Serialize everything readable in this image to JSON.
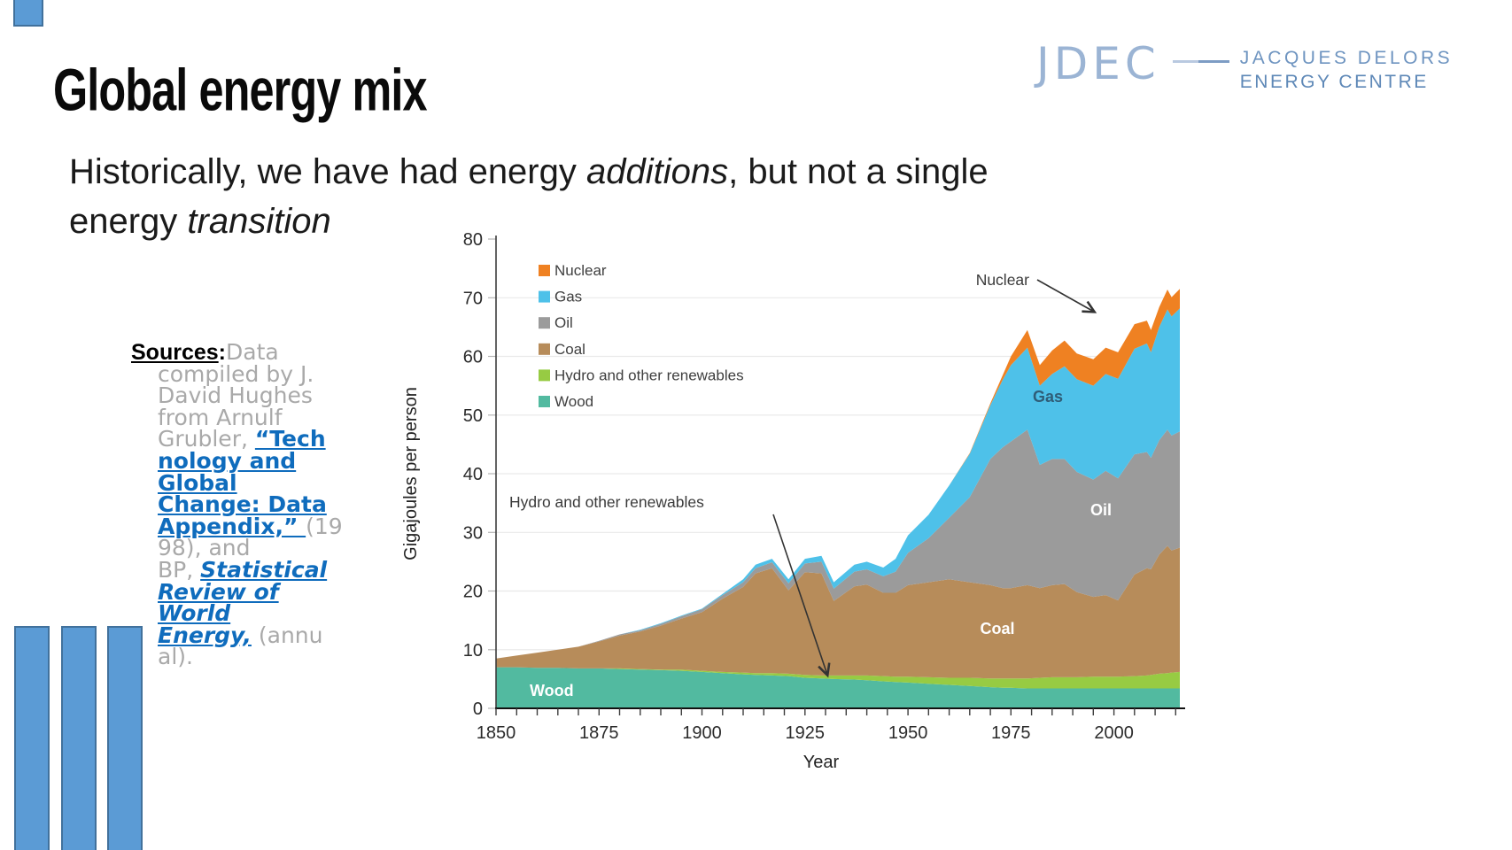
{
  "slide": {
    "title": "Global energy mix",
    "subtitle": {
      "segments": [
        {
          "t": "Historically, we have had energy "
        },
        {
          "t": "additions",
          "i": true
        },
        {
          "t": ", but not a single"
        },
        {
          "br": true
        },
        {
          "t": "energy "
        },
        {
          "t": "transition",
          "i": true
        }
      ]
    },
    "accent_color": "#5B9BD5",
    "accent_border_color": "#41719C"
  },
  "logo": {
    "acronym": "JDEC",
    "line1": "JACQUES DELORS",
    "line2": "ENERGY CENTRE",
    "color": "#6e94c0"
  },
  "sources": {
    "segments": [
      {
        "t": "Sources",
        "c": "lbl"
      },
      {
        "t": ":",
        "c": "lblc"
      },
      {
        "t": "Data\ncompiled by J.\nDavid Hughes\nfrom Arnulf\nGrubler, ",
        "c": "gray"
      },
      {
        "t": "“Tech\nnology and\nGlobal\nChange: Data\nAppendix,” ",
        "c": "link",
        "name": "source-link-grubler"
      },
      {
        "t": "(19\n98), and\nBP, ",
        "c": "gray"
      },
      {
        "t": "Statistical\nReview of\nWorld\nEnergy,",
        "c": "linki",
        "name": "source-link-bp"
      },
      {
        "t": " (annu\nal).",
        "c": "gray"
      }
    ]
  },
  "chart_data": {
    "type": "area",
    "stacked": true,
    "x_years": [
      1850,
      1855,
      1860,
      1865,
      1870,
      1875,
      1880,
      1885,
      1890,
      1895,
      1900,
      1905,
      1910,
      1913,
      1917,
      1921,
      1925,
      1929,
      1932,
      1937,
      1940,
      1944,
      1947,
      1950,
      1955,
      1960,
      1965,
      1970,
      1973,
      1975,
      1979,
      1982,
      1985,
      1988,
      1991,
      1995,
      1998,
      2001,
      2005,
      2008,
      2009,
      2011,
      2013,
      2014,
      2016
    ],
    "series": [
      {
        "name": "Wood",
        "color": "#52BAA0",
        "values": [
          7.0,
          7.0,
          6.9,
          6.9,
          6.8,
          6.8,
          6.7,
          6.6,
          6.5,
          6.4,
          6.2,
          6.0,
          5.8,
          5.7,
          5.6,
          5.5,
          5.2,
          5.1,
          5.0,
          4.9,
          4.8,
          4.6,
          4.5,
          4.4,
          4.2,
          4.0,
          3.8,
          3.6,
          3.5,
          3.5,
          3.4,
          3.4,
          3.4,
          3.4,
          3.4,
          3.4,
          3.4,
          3.4,
          3.4,
          3.4,
          3.4,
          3.4,
          3.4,
          3.4,
          3.4
        ]
      },
      {
        "name": "Hydro and other renewables",
        "color": "#97CB43",
        "values": [
          0,
          0,
          0,
          0,
          0,
          0,
          0.1,
          0.1,
          0.1,
          0.2,
          0.2,
          0.2,
          0.3,
          0.3,
          0.4,
          0.4,
          0.5,
          0.5,
          0.6,
          0.7,
          0.8,
          0.9,
          0.9,
          1.0,
          1.1,
          1.2,
          1.4,
          1.5,
          1.6,
          1.6,
          1.7,
          1.8,
          1.9,
          1.9,
          1.9,
          2.0,
          2.0,
          2.0,
          2.1,
          2.2,
          2.3,
          2.5,
          2.6,
          2.7,
          2.8
        ]
      },
      {
        "name": "Coal",
        "color": "#B78C5A",
        "values": [
          1.5,
          2.0,
          2.6,
          3.1,
          3.7,
          4.6,
          5.6,
          6.4,
          7.5,
          8.7,
          10.0,
          12.5,
          14.6,
          17.0,
          17.9,
          14.2,
          17.5,
          17.4,
          12.7,
          15.2,
          15.5,
          14.2,
          14.3,
          15.6,
          16.2,
          16.8,
          16.3,
          15.9,
          15.4,
          15.4,
          15.9,
          15.3,
          15.7,
          15.9,
          14.5,
          13.6,
          13.9,
          13.0,
          17.3,
          18.3,
          18.0,
          20.3,
          21.7,
          20.8,
          21.2
        ]
      },
      {
        "name": "Oil",
        "color": "#9B9B9B",
        "values": [
          0,
          0,
          0,
          0,
          0,
          0.1,
          0.2,
          0.2,
          0.3,
          0.4,
          0.5,
          0.6,
          0.8,
          0.9,
          1.0,
          1.2,
          1.5,
          2.0,
          2.1,
          2.5,
          2.6,
          2.8,
          3.6,
          5.5,
          7.5,
          10.5,
          14.5,
          21.5,
          24.0,
          25.0,
          26.5,
          21.0,
          21.5,
          21.3,
          20.5,
          20.0,
          21.2,
          20.8,
          20.5,
          19.8,
          19.0,
          19.5,
          19.8,
          19.6,
          19.8
        ]
      },
      {
        "name": "Gas",
        "color": "#4EC1E9",
        "values": [
          0,
          0,
          0,
          0,
          0,
          0,
          0,
          0.1,
          0.1,
          0.1,
          0.1,
          0.2,
          0.5,
          0.6,
          0.6,
          0.7,
          0.8,
          1.0,
          1.1,
          1.2,
          1.3,
          1.5,
          2.2,
          3.0,
          4.0,
          5.5,
          7.4,
          9.2,
          11.5,
          13.0,
          14.0,
          13.5,
          14.5,
          15.8,
          15.8,
          16.0,
          16.5,
          17.0,
          18.0,
          18.5,
          18.0,
          19.3,
          20.5,
          20.3,
          21.0
        ]
      },
      {
        "name": "Nuclear",
        "color": "#EF8122",
        "values": [
          0,
          0,
          0,
          0,
          0,
          0,
          0,
          0,
          0,
          0,
          0,
          0,
          0,
          0,
          0,
          0,
          0,
          0,
          0,
          0,
          0,
          0,
          0,
          0,
          0,
          0,
          0.1,
          0.3,
          0.8,
          1.5,
          3.0,
          3.5,
          4.0,
          4.4,
          4.4,
          4.5,
          4.5,
          4.5,
          4.2,
          3.9,
          3.8,
          3.4,
          3.4,
          3.3,
          3.3
        ]
      }
    ],
    "legend_order": [
      "Nuclear",
      "Gas",
      "Oil",
      "Coal",
      "Hydro and other renewables",
      "Wood"
    ],
    "xlabel": "Year",
    "ylabel": "Gigajoules per person",
    "ylim": [
      0,
      80
    ],
    "yticks": [
      0,
      10,
      20,
      30,
      40,
      50,
      60,
      70,
      80
    ],
    "xticks_labeled": [
      1850,
      1875,
      1900,
      1925,
      1950,
      1975,
      2000
    ],
    "xtick_minor_step": 5,
    "grid": "horizontal",
    "legend_position": "top-left-inside",
    "area_labels": {
      "wood": "Wood",
      "coal": "Coal",
      "oil": "Oil",
      "gas": "Gas"
    },
    "annotations": {
      "nuclear": "Nuclear",
      "hydro": "Hydro and other renewables"
    }
  }
}
